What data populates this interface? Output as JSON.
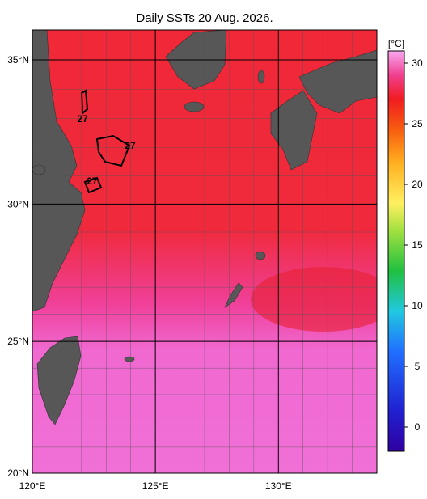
{
  "title": "Daily SSTs 20 Aug. 2026.",
  "map": {
    "xlim": [
      120,
      134
    ],
    "ylim": [
      20,
      36
    ],
    "xticks": [
      {
        "value": 120,
        "label": "120°E"
      },
      {
        "value": 125,
        "label": "125°E"
      },
      {
        "value": 130,
        "label": "130°E"
      }
    ],
    "yticks": [
      {
        "value": 35,
        "label": "35°N"
      },
      {
        "value": 30,
        "label": "30°N"
      },
      {
        "value": 25,
        "label": "25°N"
      },
      {
        "value": 20,
        "label": "20°N"
      }
    ],
    "contour_labels": [
      "27",
      "27",
      "27"
    ]
  },
  "colorbar": {
    "label": "[°C]",
    "lim": [
      -2,
      31
    ],
    "ticks": [
      30,
      25,
      20,
      15,
      10,
      5,
      0
    ]
  }
}
